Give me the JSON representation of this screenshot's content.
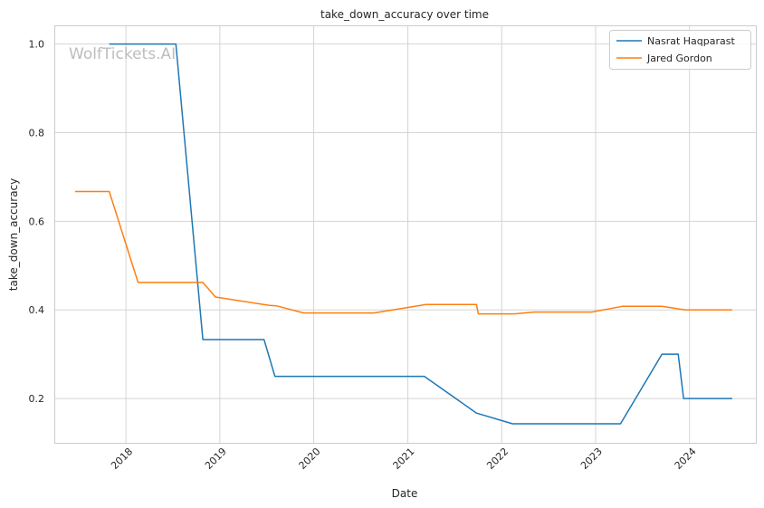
{
  "chart_data": {
    "type": "line",
    "title": "take_down_accuracy over time",
    "xlabel": "Date",
    "ylabel": "take_down_accuracy",
    "xlim": [
      "2017-04-01",
      "2024-09-15"
    ],
    "ylim": [
      0.1,
      1.04
    ],
    "xticks": [
      "2018",
      "2019",
      "2020",
      "2021",
      "2022",
      "2023",
      "2024"
    ],
    "yticks": [
      0.2,
      0.4,
      0.6,
      0.8,
      1.0
    ],
    "grid": true,
    "legend_position": "top-right",
    "watermark": "WolfTickets.AI",
    "colors": {
      "Nasrat Haqparast": "#1f77b4",
      "Jared Gordon": "#ff7f0e"
    },
    "series": [
      {
        "name": "Nasrat Haqparast",
        "points": [
          {
            "x": "2017-10-28",
            "y": 1.0
          },
          {
            "x": "2018-07-14",
            "y": 1.0
          },
          {
            "x": "2018-10-27",
            "y": 0.333
          },
          {
            "x": "2019-06-22",
            "y": 0.333
          },
          {
            "x": "2019-08-03",
            "y": 0.25
          },
          {
            "x": "2021-03-06",
            "y": 0.25
          },
          {
            "x": "2021-09-25",
            "y": 0.167
          },
          {
            "x": "2022-02-12",
            "y": 0.143
          },
          {
            "x": "2023-04-08",
            "y": 0.143
          },
          {
            "x": "2023-09-16",
            "y": 0.3
          },
          {
            "x": "2023-11-18",
            "y": 0.3
          },
          {
            "x": "2023-12-09",
            "y": 0.2
          },
          {
            "x": "2024-06-15",
            "y": 0.2
          }
        ]
      },
      {
        "name": "Jared Gordon",
        "points": [
          {
            "x": "2017-06-17",
            "y": 0.667
          },
          {
            "x": "2017-10-28",
            "y": 0.667
          },
          {
            "x": "2018-02-17",
            "y": 0.462
          },
          {
            "x": "2018-10-27",
            "y": 0.462
          },
          {
            "x": "2018-12-15",
            "y": 0.429
          },
          {
            "x": "2019-07-13",
            "y": 0.41
          },
          {
            "x": "2019-08-10",
            "y": 0.409
          },
          {
            "x": "2019-11-23",
            "y": 0.393
          },
          {
            "x": "2020-08-22",
            "y": 0.393
          },
          {
            "x": "2021-03-13",
            "y": 0.412
          },
          {
            "x": "2021-09-25",
            "y": 0.412
          },
          {
            "x": "2021-10-02",
            "y": 0.391
          },
          {
            "x": "2022-02-19",
            "y": 0.391
          },
          {
            "x": "2022-05-07",
            "y": 0.395
          },
          {
            "x": "2022-12-17",
            "y": 0.395
          },
          {
            "x": "2023-04-15",
            "y": 0.408
          },
          {
            "x": "2023-09-16",
            "y": 0.408
          },
          {
            "x": "2023-12-16",
            "y": 0.4
          },
          {
            "x": "2024-06-15",
            "y": 0.4
          }
        ]
      }
    ]
  }
}
